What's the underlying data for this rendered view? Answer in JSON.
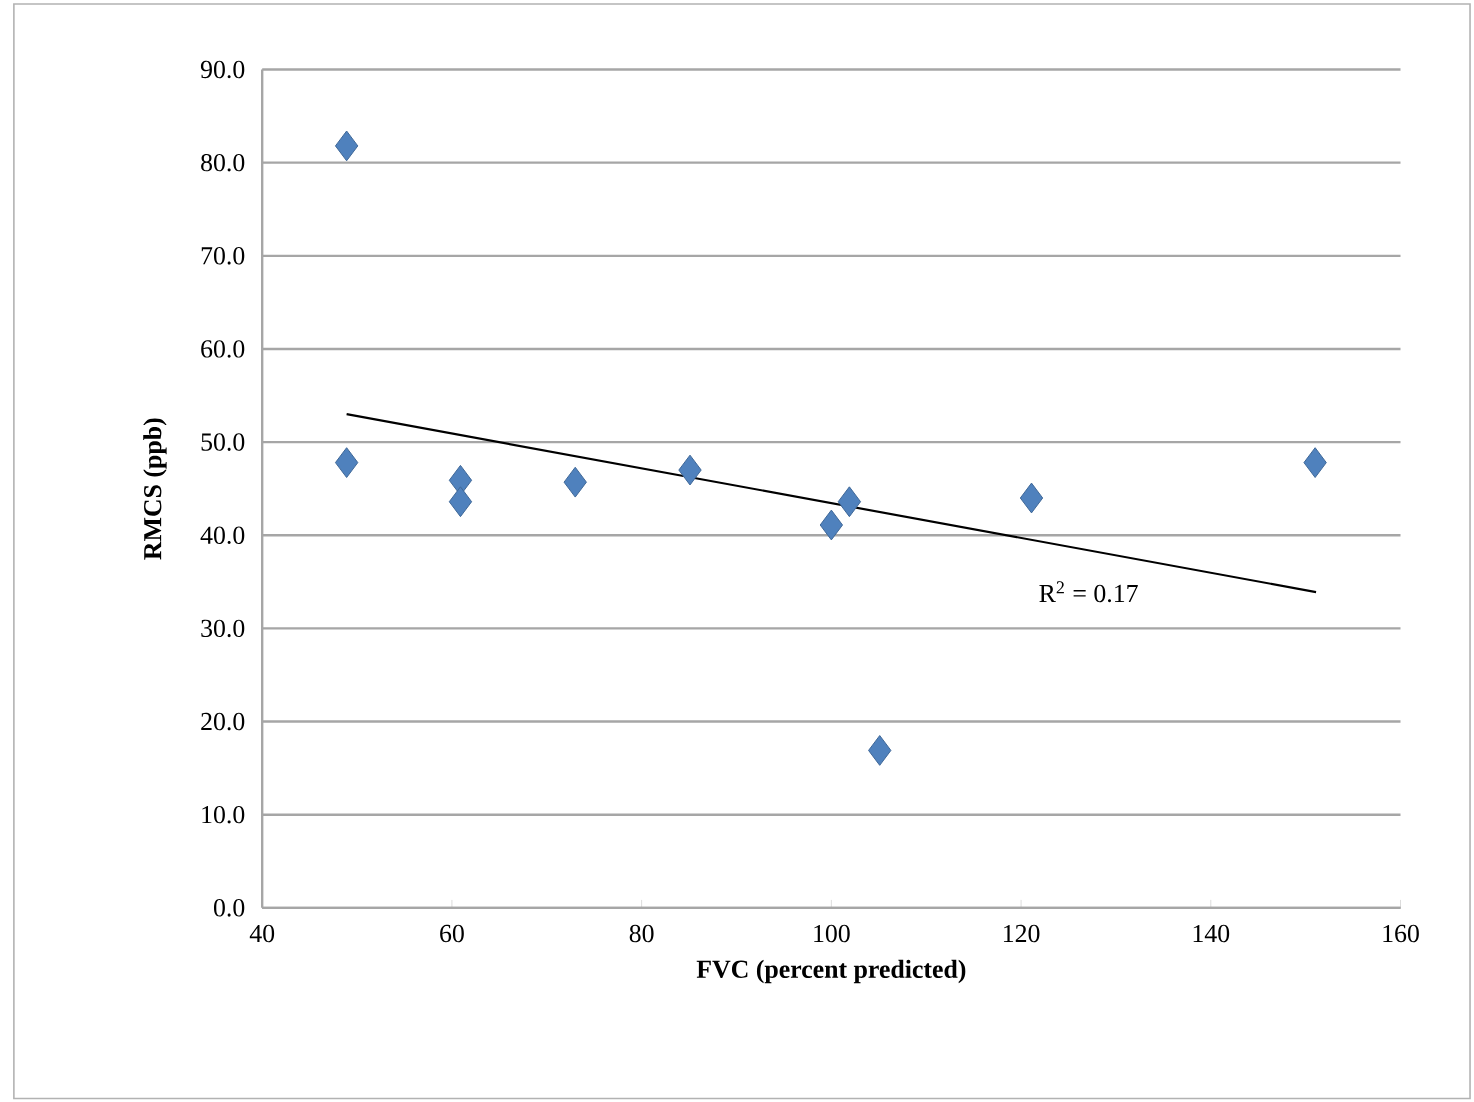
{
  "chart_data": {
    "type": "scatter",
    "xlabel": "FVC (percent predicted)",
    "ylabel": "RMCS (ppb)",
    "xlim": [
      40,
      160
    ],
    "ylim": [
      0,
      90
    ],
    "xticks": [
      40,
      60,
      80,
      100,
      120,
      140,
      160
    ],
    "yticks": [
      {
        "value": 0,
        "label": "0.0"
      },
      {
        "value": 10,
        "label": "10.0"
      },
      {
        "value": 20,
        "label": "20.0"
      },
      {
        "value": 30,
        "label": "30.0"
      },
      {
        "value": 40,
        "label": "40.0"
      },
      {
        "value": 50,
        "label": "50.0"
      },
      {
        "value": 60,
        "label": "60.0"
      },
      {
        "value": 70,
        "label": "70.0"
      },
      {
        "value": 80,
        "label": "80.0"
      },
      {
        "value": 90,
        "label": "90.0"
      }
    ],
    "grid": "y",
    "marker": "diamond",
    "series": [
      {
        "color": "#4f81bd",
        "x": [
          48.9,
          48.9,
          60.9,
          60.9,
          73.0,
          85.1,
          100,
          101.9,
          105.1,
          121.1,
          151.0
        ],
        "values": [
          81.8,
          47.8,
          45.9,
          43.6,
          45.7,
          47.0,
          41.1,
          43.6,
          16.9,
          44.0,
          47.8
        ]
      },
      {
        "type": "line",
        "color": "#000000",
        "marker": "none",
        "x": [
          48.9,
          151.1
        ],
        "values": [
          53.0,
          33.9
        ]
      }
    ],
    "annotations": [
      "R$^{2}$ = 0.17"
    ]
  }
}
